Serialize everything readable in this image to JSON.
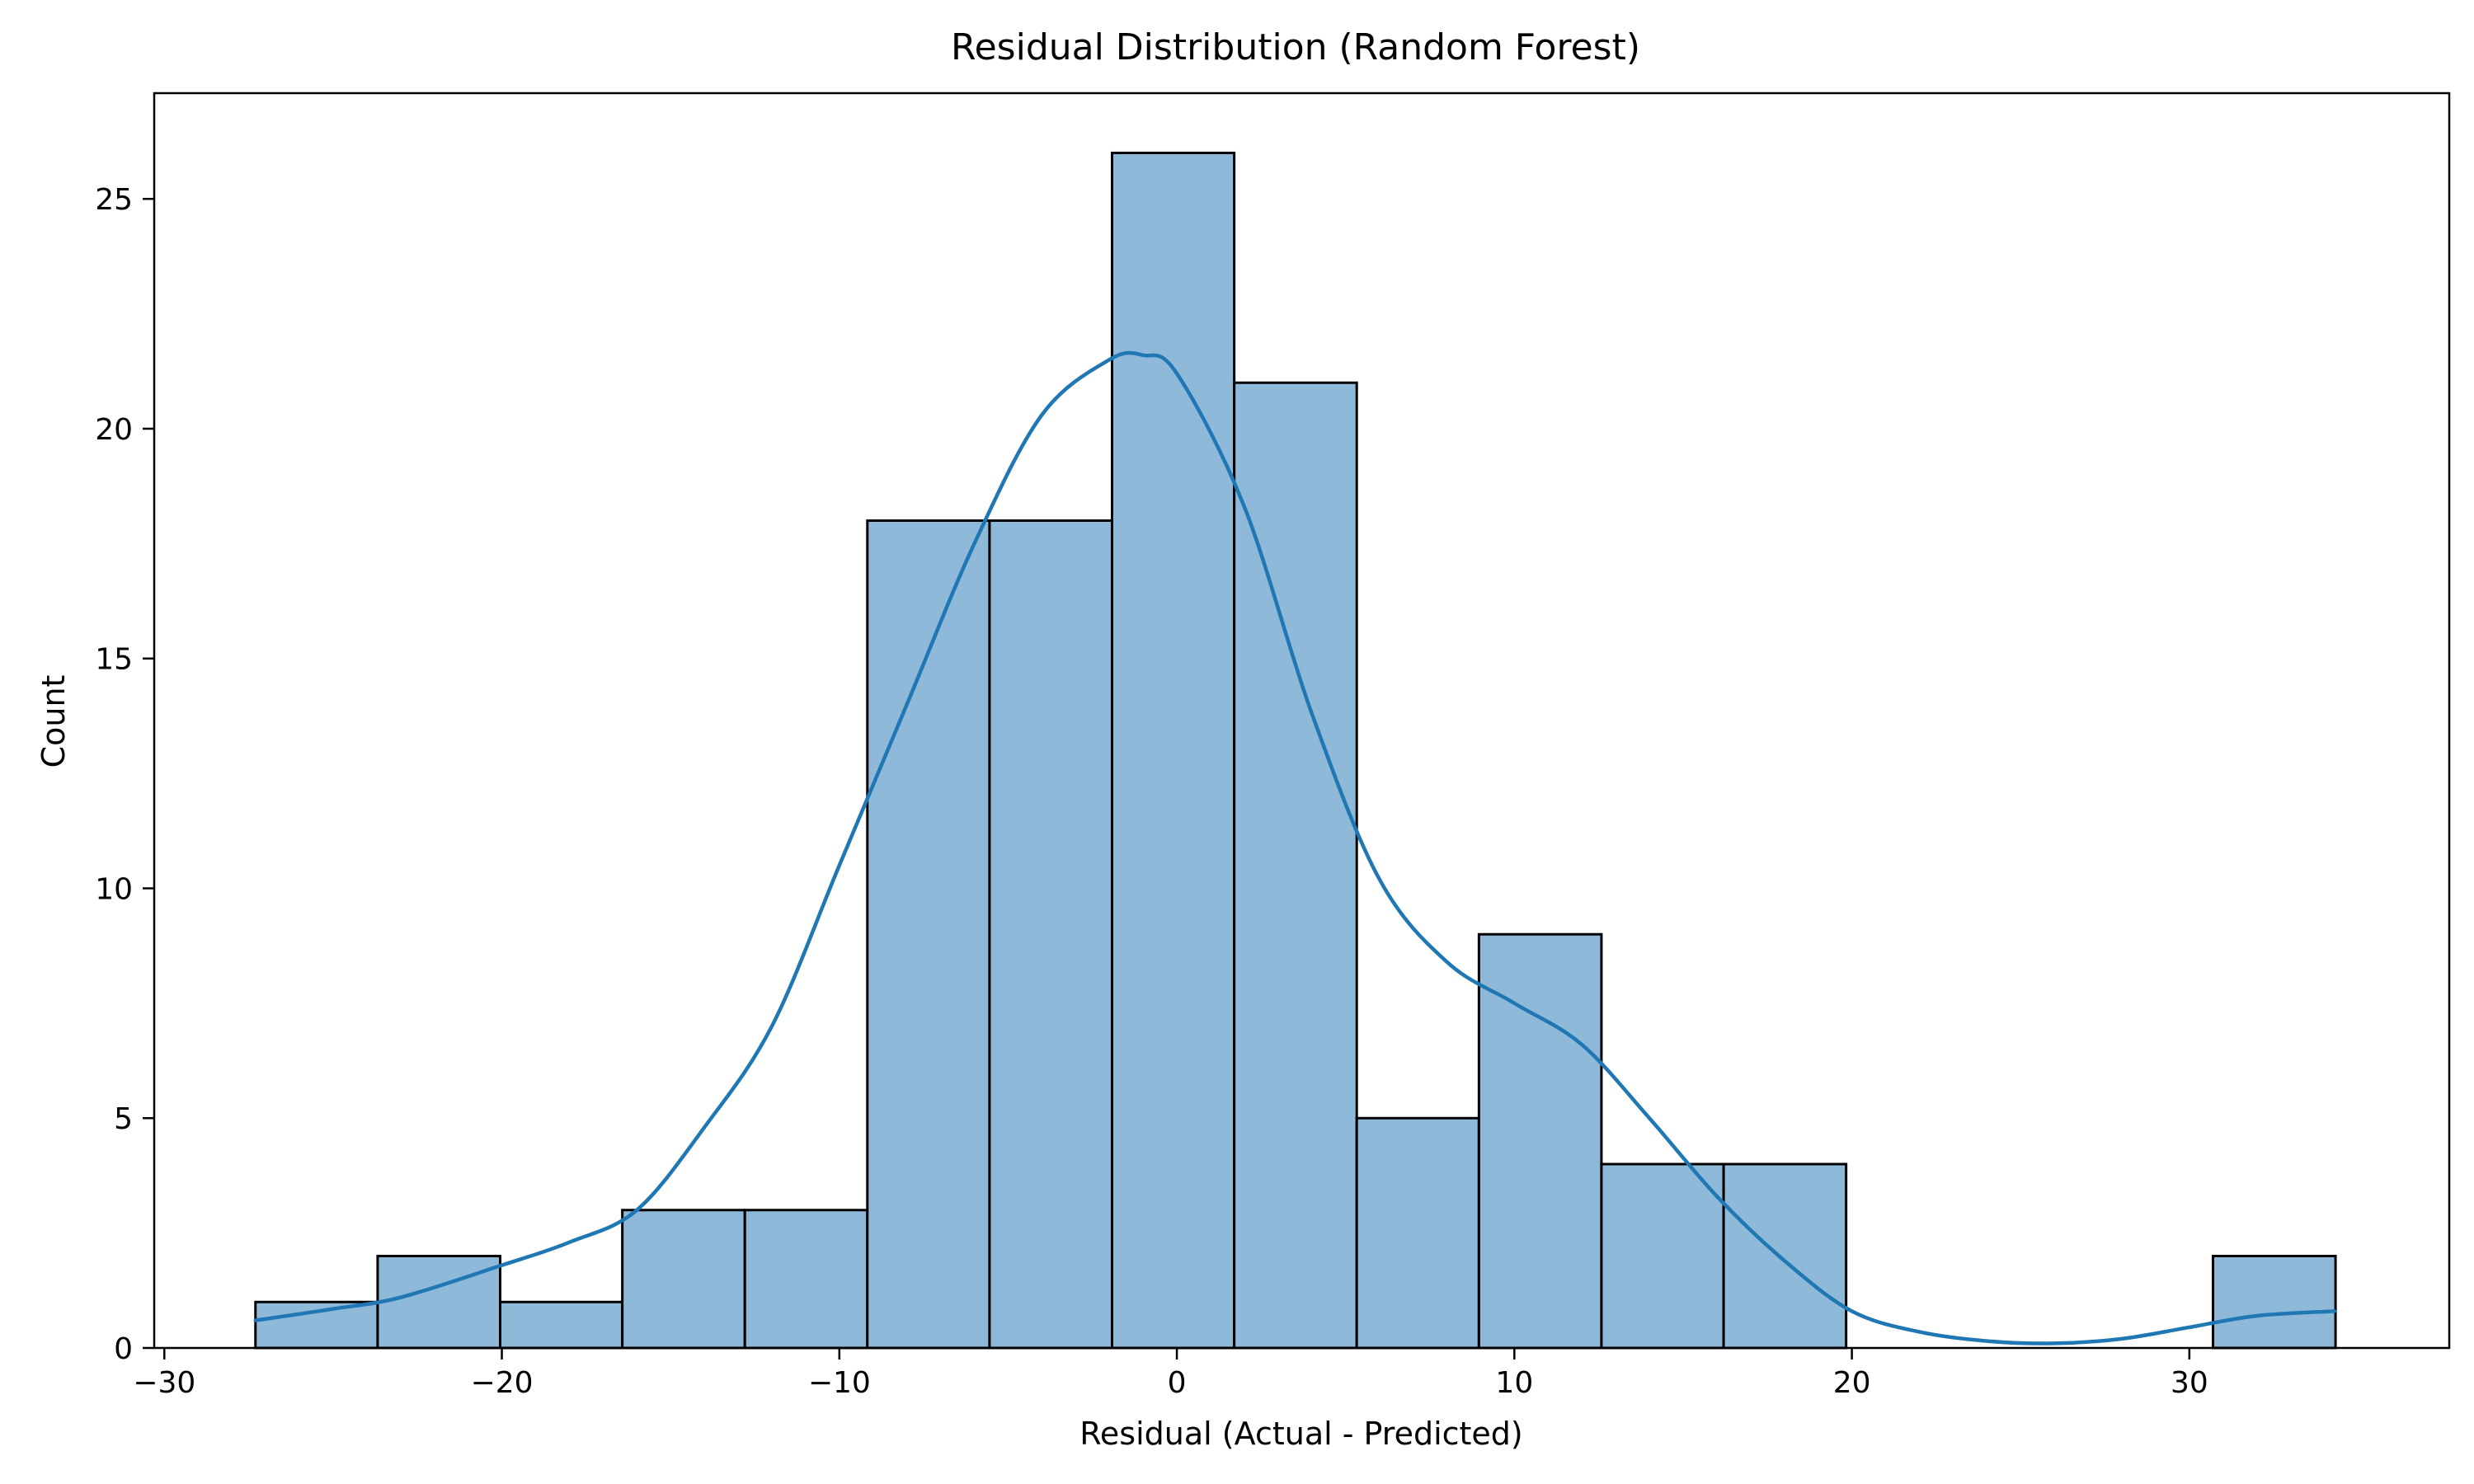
{
  "chart_data": {
    "type": "bar",
    "title": "Residual Distribution (Random Forest)",
    "xlabel": "Residual (Actual - Predicted)",
    "ylabel": "Count",
    "xlim": [
      -30.3,
      37.7
    ],
    "ylim": [
      0,
      27.3
    ],
    "xticks": [
      {
        "value": -30,
        "label": "−30"
      },
      {
        "value": -20,
        "label": "−20"
      },
      {
        "value": -10,
        "label": "−10"
      },
      {
        "value": 0,
        "label": "0"
      },
      {
        "value": 10,
        "label": "10"
      },
      {
        "value": 20,
        "label": "20"
      },
      {
        "value": 30,
        "label": "30"
      }
    ],
    "yticks": [
      {
        "value": 0,
        "label": "0"
      },
      {
        "value": 5,
        "label": "5"
      },
      {
        "value": 10,
        "label": "10"
      },
      {
        "value": 15,
        "label": "15"
      },
      {
        "value": 20,
        "label": "20"
      },
      {
        "value": 25,
        "label": "25"
      }
    ],
    "grid": false,
    "bar_color": "#8fb9d9",
    "edge_color": "#000000",
    "kde_color": "#1f77b4",
    "bins": [
      {
        "x0": -27.3,
        "x1": -23.68,
        "count": 1
      },
      {
        "x0": -23.68,
        "x1": -20.05,
        "count": 2
      },
      {
        "x0": -20.05,
        "x1": -16.43,
        "count": 1
      },
      {
        "x0": -16.43,
        "x1": -12.8,
        "count": 3
      },
      {
        "x0": -12.8,
        "x1": -9.17,
        "count": 3
      },
      {
        "x0": -9.17,
        "x1": -5.55,
        "count": 18
      },
      {
        "x0": -5.55,
        "x1": -1.92,
        "count": 18
      },
      {
        "x0": -1.92,
        "x1": 1.7,
        "count": 26
      },
      {
        "x0": 1.7,
        "x1": 5.33,
        "count": 21
      },
      {
        "x0": 5.33,
        "x1": 8.95,
        "count": 5
      },
      {
        "x0": 8.95,
        "x1": 12.58,
        "count": 9
      },
      {
        "x0": 12.58,
        "x1": 16.2,
        "count": 4
      },
      {
        "x0": 16.2,
        "x1": 19.83,
        "count": 4
      },
      {
        "x0": 19.83,
        "x1": 23.45,
        "count": 0
      },
      {
        "x0": 23.45,
        "x1": 27.08,
        "count": 0
      },
      {
        "x0": 27.08,
        "x1": 30.7,
        "count": 0
      },
      {
        "x0": 30.7,
        "x1": 34.33,
        "count": 2
      }
    ],
    "kde": {
      "x": [
        -27.3,
        -25,
        -23,
        -20,
        -18,
        -16,
        -14,
        -12,
        -10,
        -8,
        -6,
        -4,
        -2,
        -1,
        0,
        2,
        4,
        6,
        8,
        10,
        12,
        14,
        16,
        18,
        20,
        22,
        24,
        26,
        28,
        30,
        32,
        34.3
      ],
      "y": [
        0.6,
        0.85,
        1.1,
        1.8,
        2.3,
        3.0,
        4.8,
        7.0,
        10.5,
        14.0,
        17.5,
        20.3,
        21.5,
        21.6,
        21.2,
        18.3,
        13.8,
        10.2,
        8.4,
        7.5,
        6.6,
        5.0,
        3.3,
        1.9,
        0.8,
        0.35,
        0.15,
        0.1,
        0.2,
        0.45,
        0.7,
        0.8
      ]
    }
  }
}
